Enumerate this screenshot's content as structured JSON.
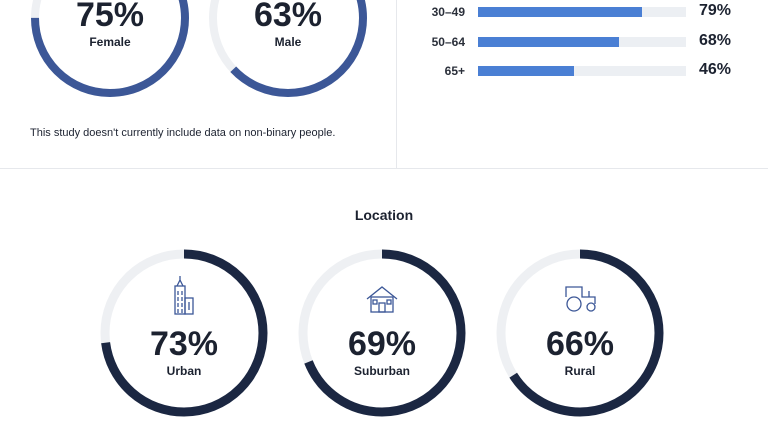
{
  "gender": {
    "note": "This study doesn't currently include data on non-binary people.",
    "colors": {
      "ring": "#3c5797",
      "track": "#eef0f3"
    }
  },
  "age": {
    "colors": {
      "bar": "#4a7fd4",
      "track": "#eceff3"
    }
  },
  "location": {
    "title": "Location",
    "colors": {
      "ring": "#1b2742",
      "track": "#eef0f3"
    }
  },
  "chart_data": [
    {
      "type": "pie",
      "variant": "donut",
      "group": "gender",
      "categories": [
        "Female",
        "Male"
      ],
      "values": [
        75,
        63
      ],
      "value_labels": [
        "75%",
        "63%"
      ],
      "unit": "%"
    },
    {
      "type": "bar",
      "orientation": "horizontal",
      "group": "age",
      "categories": [
        "30–49",
        "50–64",
        "65+"
      ],
      "values": [
        79,
        68,
        46
      ],
      "value_labels": [
        "79%",
        "68%",
        "46%"
      ],
      "xlim": [
        0,
        100
      ],
      "unit": "%"
    },
    {
      "type": "pie",
      "variant": "donut",
      "group": "location",
      "categories": [
        "Urban",
        "Suburban",
        "Rural"
      ],
      "values": [
        73,
        69,
        66
      ],
      "value_labels": [
        "73%",
        "69%",
        "66%"
      ],
      "icons": [
        "city-building-icon",
        "house-icon",
        "tractor-icon"
      ],
      "unit": "%"
    }
  ]
}
